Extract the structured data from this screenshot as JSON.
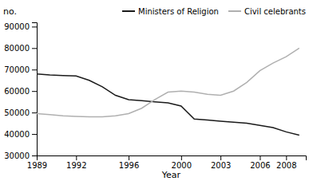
{
  "chart_data": {
    "type": "line",
    "xlabel": "Year",
    "ylabel": "no.",
    "x": [
      1989,
      1990,
      1991,
      1992,
      1993,
      1994,
      1995,
      1996,
      1997,
      1998,
      1999,
      2000,
      2001,
      2002,
      2003,
      2004,
      2005,
      2006,
      2007,
      2008,
      2009
    ],
    "series": [
      {
        "name": "Ministers of Religion",
        "color": "#1a1a1a",
        "values": [
          68000,
          67500,
          67200,
          67000,
          65000,
          62000,
          58000,
          56000,
          55500,
          55000,
          54500,
          53000,
          47000,
          46500,
          46000,
          45500,
          45000,
          44000,
          43000,
          41000,
          39500
        ]
      },
      {
        "name": "Civil celebrants",
        "color": "#b0b0b0",
        "values": [
          49500,
          49000,
          48500,
          48200,
          48000,
          48000,
          48500,
          49500,
          52000,
          56000,
          59500,
          60000,
          59500,
          58500,
          58000,
          60000,
          64000,
          69500,
          73000,
          76000,
          80000
        ]
      }
    ],
    "xlim": [
      1989,
      2009.5
    ],
    "ylim": [
      30000,
      92000
    ],
    "xticks": [
      1989,
      1992,
      1996,
      2000,
      2003,
      2006,
      2008
    ],
    "yticks": [
      30000,
      40000,
      50000,
      60000,
      70000,
      80000,
      90000
    ],
    "grid": false,
    "legend": "upper right"
  }
}
